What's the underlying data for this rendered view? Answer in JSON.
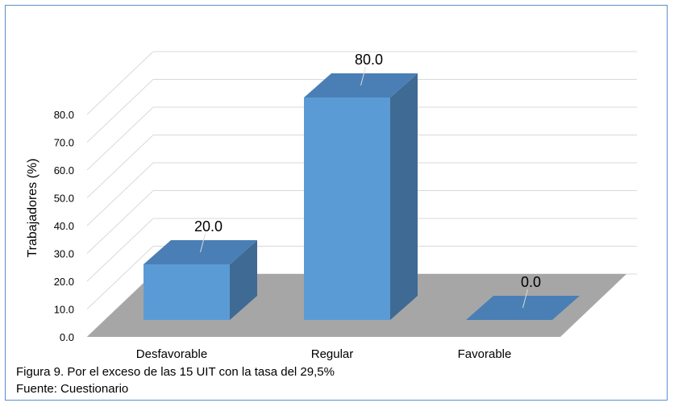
{
  "chart_data": {
    "type": "bar",
    "categories": [
      "Desfavorable",
      "Regular",
      "Favorable"
    ],
    "values": [
      20.0,
      80.0,
      0.0
    ],
    "data_labels": [
      "20.0",
      "80.0",
      "0.0"
    ],
    "ylabel": "Trabajadores (%)",
    "xlabel": "",
    "ylim": [
      0,
      80
    ],
    "yticks": [
      "0.0",
      "10.0",
      "20.0",
      "30.0",
      "40.0",
      "50.0",
      "60.0",
      "70.0",
      "80.0"
    ],
    "grid": true,
    "three_d": true,
    "legend": "none"
  },
  "caption": "Figura 9. Por el exceso de las 15 UIT con la tasa del 29,5%",
  "source": "Fuente: Cuestionario",
  "colors": {
    "bar_front": "#5b9bd5",
    "bar_top": "#4a7fb5",
    "bar_side": "#3f6a93",
    "floor": "#a6a6a6",
    "gridline": "#d9d9d9",
    "frame": "#5b8ed0"
  }
}
